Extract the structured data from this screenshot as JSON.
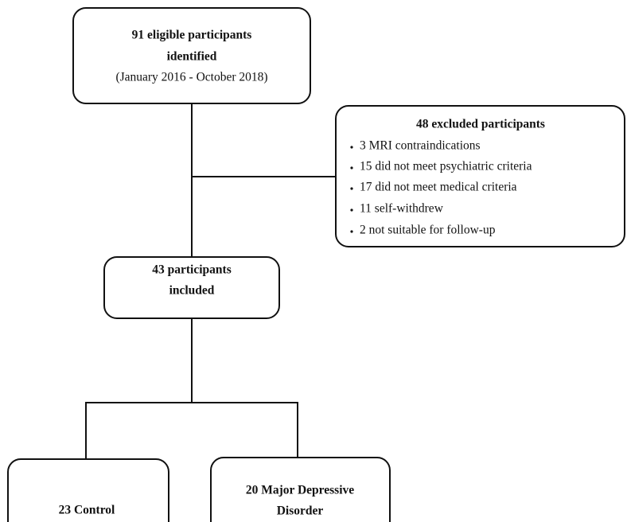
{
  "nodes": [
    {
      "lines": [
        "91 eligible participants",
        "identified",
        "(January 2016 - October 2018)"
      ]
    },
    {
      "title": "48 excluded participants",
      "items": [
        "3 MRI contraindications",
        "15 did not meet psychiatric criteria",
        "17 did not meet medical criteria",
        "11 self-withdrew",
        "2 not suitable for follow-up"
      ]
    },
    {
      "lines": [
        "43 participants",
        "included"
      ]
    },
    {
      "lines": [
        "23 Control"
      ]
    },
    {
      "lines": [
        "20 Major Depressive",
        "Disorder"
      ]
    }
  ]
}
